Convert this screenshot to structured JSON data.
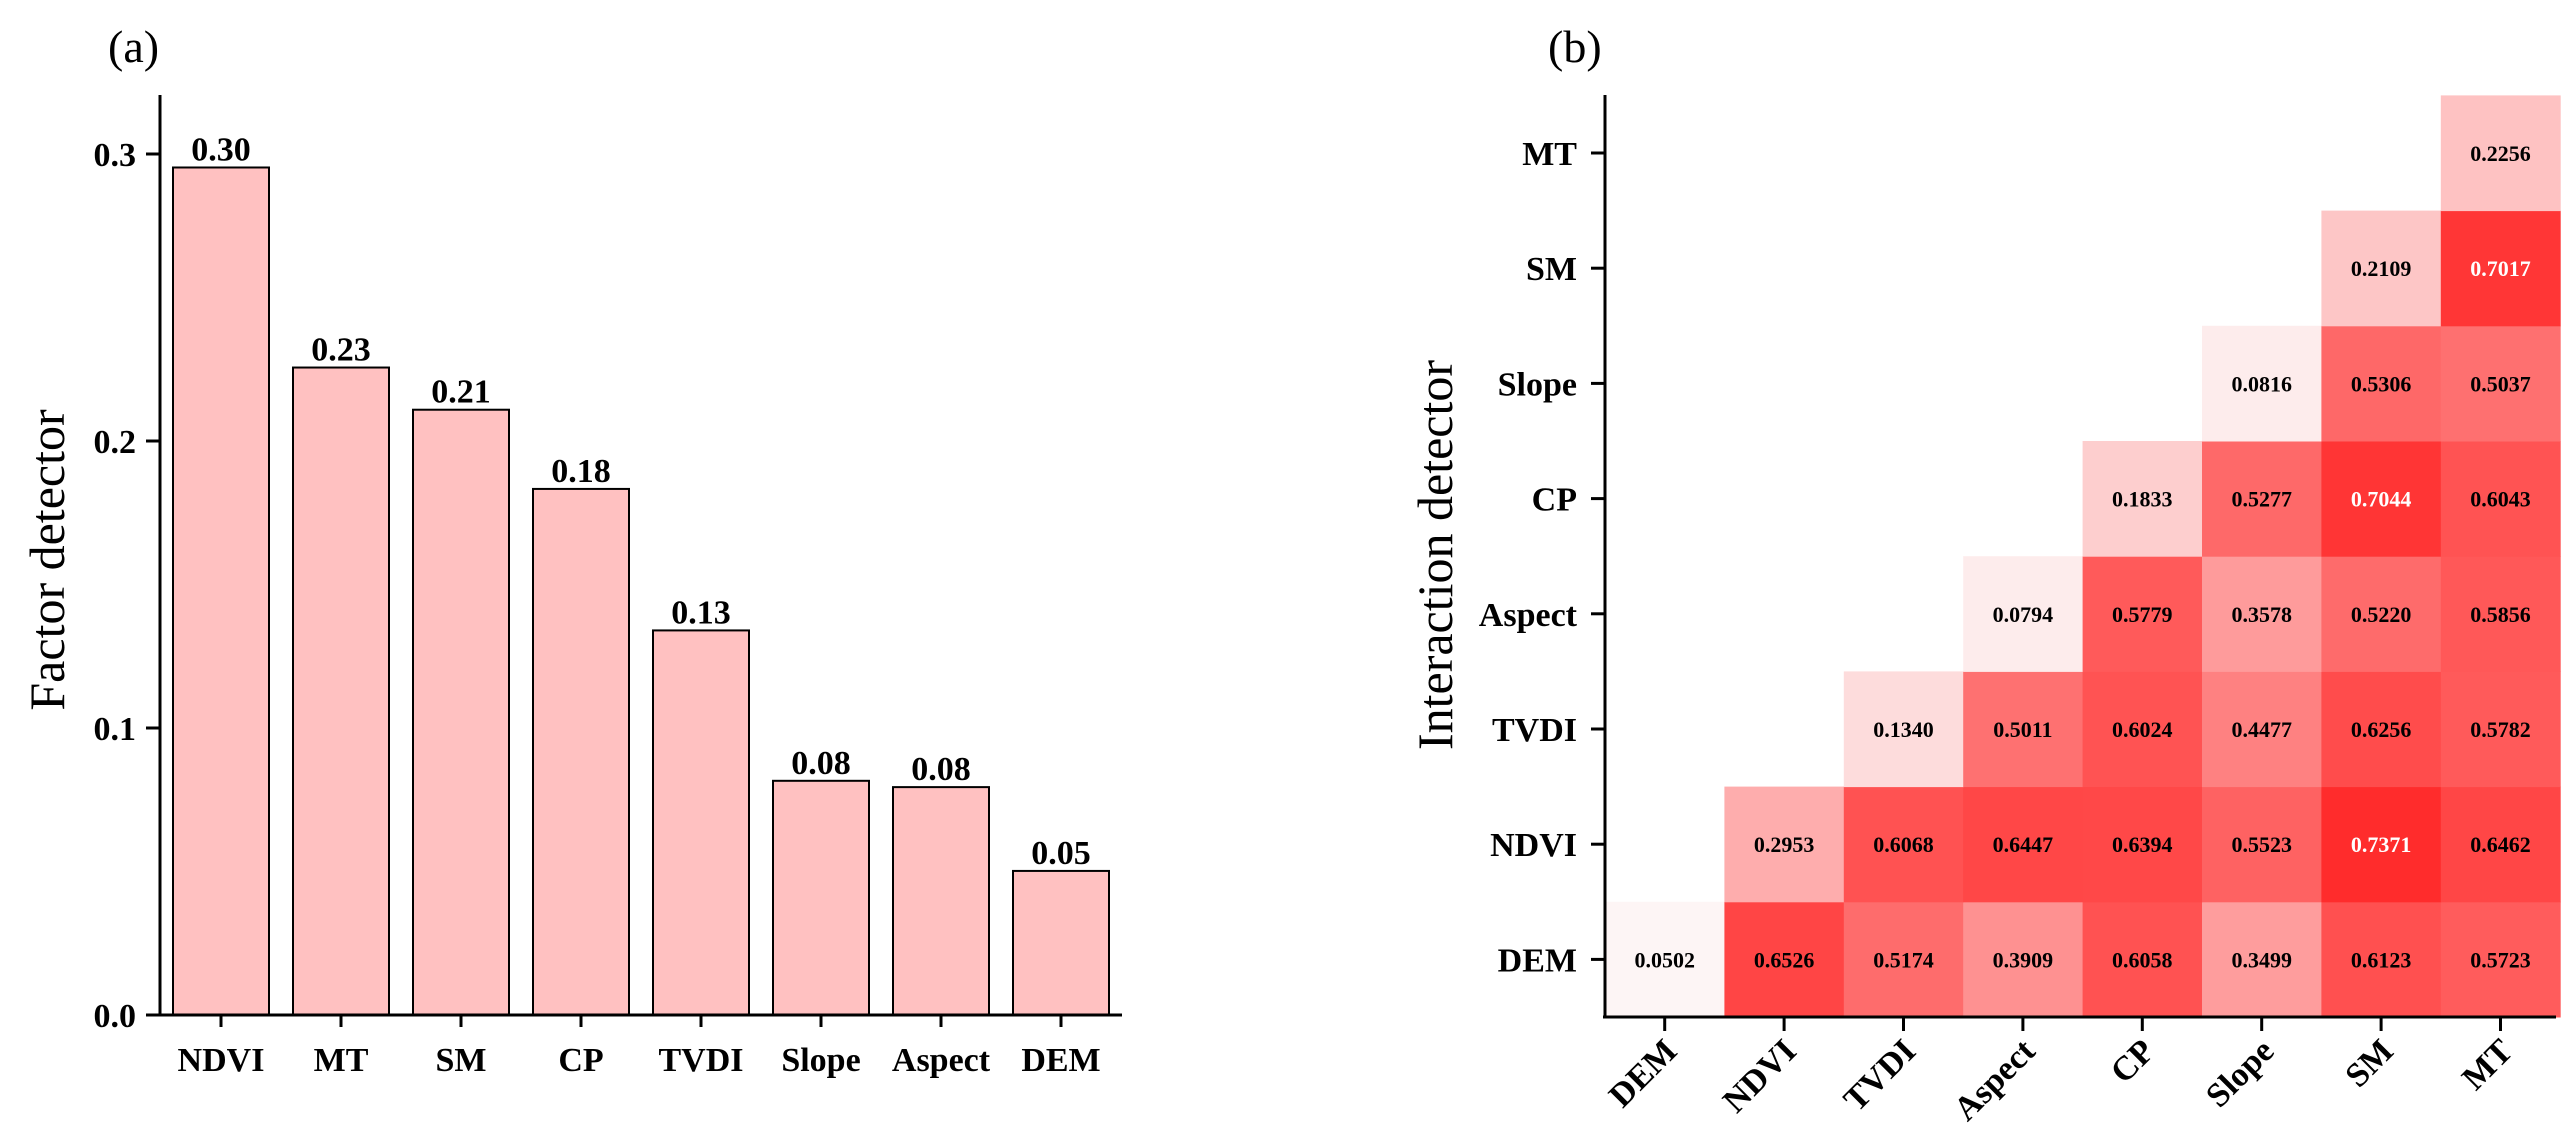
{
  "chart_data": [
    {
      "type": "bar",
      "panel_label": "(a)",
      "title": "",
      "xlabel": "",
      "ylabel": "Factor detector",
      "ylim": [
        0,
        0.32
      ],
      "yticks": [
        "0.0",
        "0.1",
        "0.2",
        "0.3"
      ],
      "categories": [
        "NDVI",
        "MT",
        "SM",
        "CP",
        "TVDI",
        "Slope",
        "Aspect",
        "DEM"
      ],
      "values": [
        0.2953,
        0.2256,
        0.2109,
        0.1833,
        0.134,
        0.0816,
        0.0794,
        0.0502
      ],
      "data_labels": [
        "0.30",
        "0.23",
        "0.21",
        "0.18",
        "0.13",
        "0.08",
        "0.08",
        "0.05"
      ],
      "bar_color": "#ffc1c1",
      "bar_edge_color": "#000000"
    },
    {
      "type": "heatmap",
      "panel_label": "(b)",
      "title": "",
      "xlabel": "",
      "ylabel": "Interaction detector",
      "x_categories": [
        "DEM",
        "NDVI",
        "TVDI",
        "Aspect",
        "CP",
        "Slope",
        "SM",
        "MT"
      ],
      "y_categories": [
        "DEM",
        "NDVI",
        "TVDI",
        "Aspect",
        "CP",
        "Slope",
        "SM",
        "MT"
      ],
      "color_low": "#fdf5f5",
      "color_high": "#ff2b2b",
      "value_range": [
        0.05,
        0.74
      ],
      "cells": [
        {
          "row": "DEM",
          "col": "DEM",
          "value": "0.0502"
        },
        {
          "row": "DEM",
          "col": "NDVI",
          "value": "0.6526"
        },
        {
          "row": "DEM",
          "col": "TVDI",
          "value": "0.5174"
        },
        {
          "row": "DEM",
          "col": "Aspect",
          "value": "0.3909"
        },
        {
          "row": "DEM",
          "col": "CP",
          "value": "0.6058"
        },
        {
          "row": "DEM",
          "col": "Slope",
          "value": "0.3499"
        },
        {
          "row": "DEM",
          "col": "SM",
          "value": "0.6123"
        },
        {
          "row": "DEM",
          "col": "MT",
          "value": "0.5723"
        },
        {
          "row": "NDVI",
          "col": "NDVI",
          "value": "0.2953"
        },
        {
          "row": "NDVI",
          "col": "TVDI",
          "value": "0.6068"
        },
        {
          "row": "NDVI",
          "col": "Aspect",
          "value": "0.6447"
        },
        {
          "row": "NDVI",
          "col": "CP",
          "value": "0.6394"
        },
        {
          "row": "NDVI",
          "col": "Slope",
          "value": "0.5523"
        },
        {
          "row": "NDVI",
          "col": "SM",
          "value": "0.7371"
        },
        {
          "row": "NDVI",
          "col": "MT",
          "value": "0.6462"
        },
        {
          "row": "TVDI",
          "col": "TVDI",
          "value": "0.1340"
        },
        {
          "row": "TVDI",
          "col": "Aspect",
          "value": "0.5011"
        },
        {
          "row": "TVDI",
          "col": "CP",
          "value": "0.6024"
        },
        {
          "row": "TVDI",
          "col": "Slope",
          "value": "0.4477"
        },
        {
          "row": "TVDI",
          "col": "SM",
          "value": "0.6256"
        },
        {
          "row": "TVDI",
          "col": "MT",
          "value": "0.5782"
        },
        {
          "row": "Aspect",
          "col": "Aspect",
          "value": "0.0794"
        },
        {
          "row": "Aspect",
          "col": "CP",
          "value": "0.5779"
        },
        {
          "row": "Aspect",
          "col": "Slope",
          "value": "0.3578"
        },
        {
          "row": "Aspect",
          "col": "SM",
          "value": "0.5220"
        },
        {
          "row": "Aspect",
          "col": "MT",
          "value": "0.5856"
        },
        {
          "row": "CP",
          "col": "CP",
          "value": "0.1833"
        },
        {
          "row": "CP",
          "col": "Slope",
          "value": "0.5277"
        },
        {
          "row": "CP",
          "col": "SM",
          "value": "0.7044"
        },
        {
          "row": "CP",
          "col": "MT",
          "value": "0.6043"
        },
        {
          "row": "Slope",
          "col": "Slope",
          "value": "0.0816"
        },
        {
          "row": "Slope",
          "col": "SM",
          "value": "0.5306"
        },
        {
          "row": "Slope",
          "col": "MT",
          "value": "0.5037"
        },
        {
          "row": "SM",
          "col": "SM",
          "value": "0.2109"
        },
        {
          "row": "SM",
          "col": "MT",
          "value": "0.7017"
        },
        {
          "row": "MT",
          "col": "MT",
          "value": "0.2256"
        }
      ]
    }
  ]
}
